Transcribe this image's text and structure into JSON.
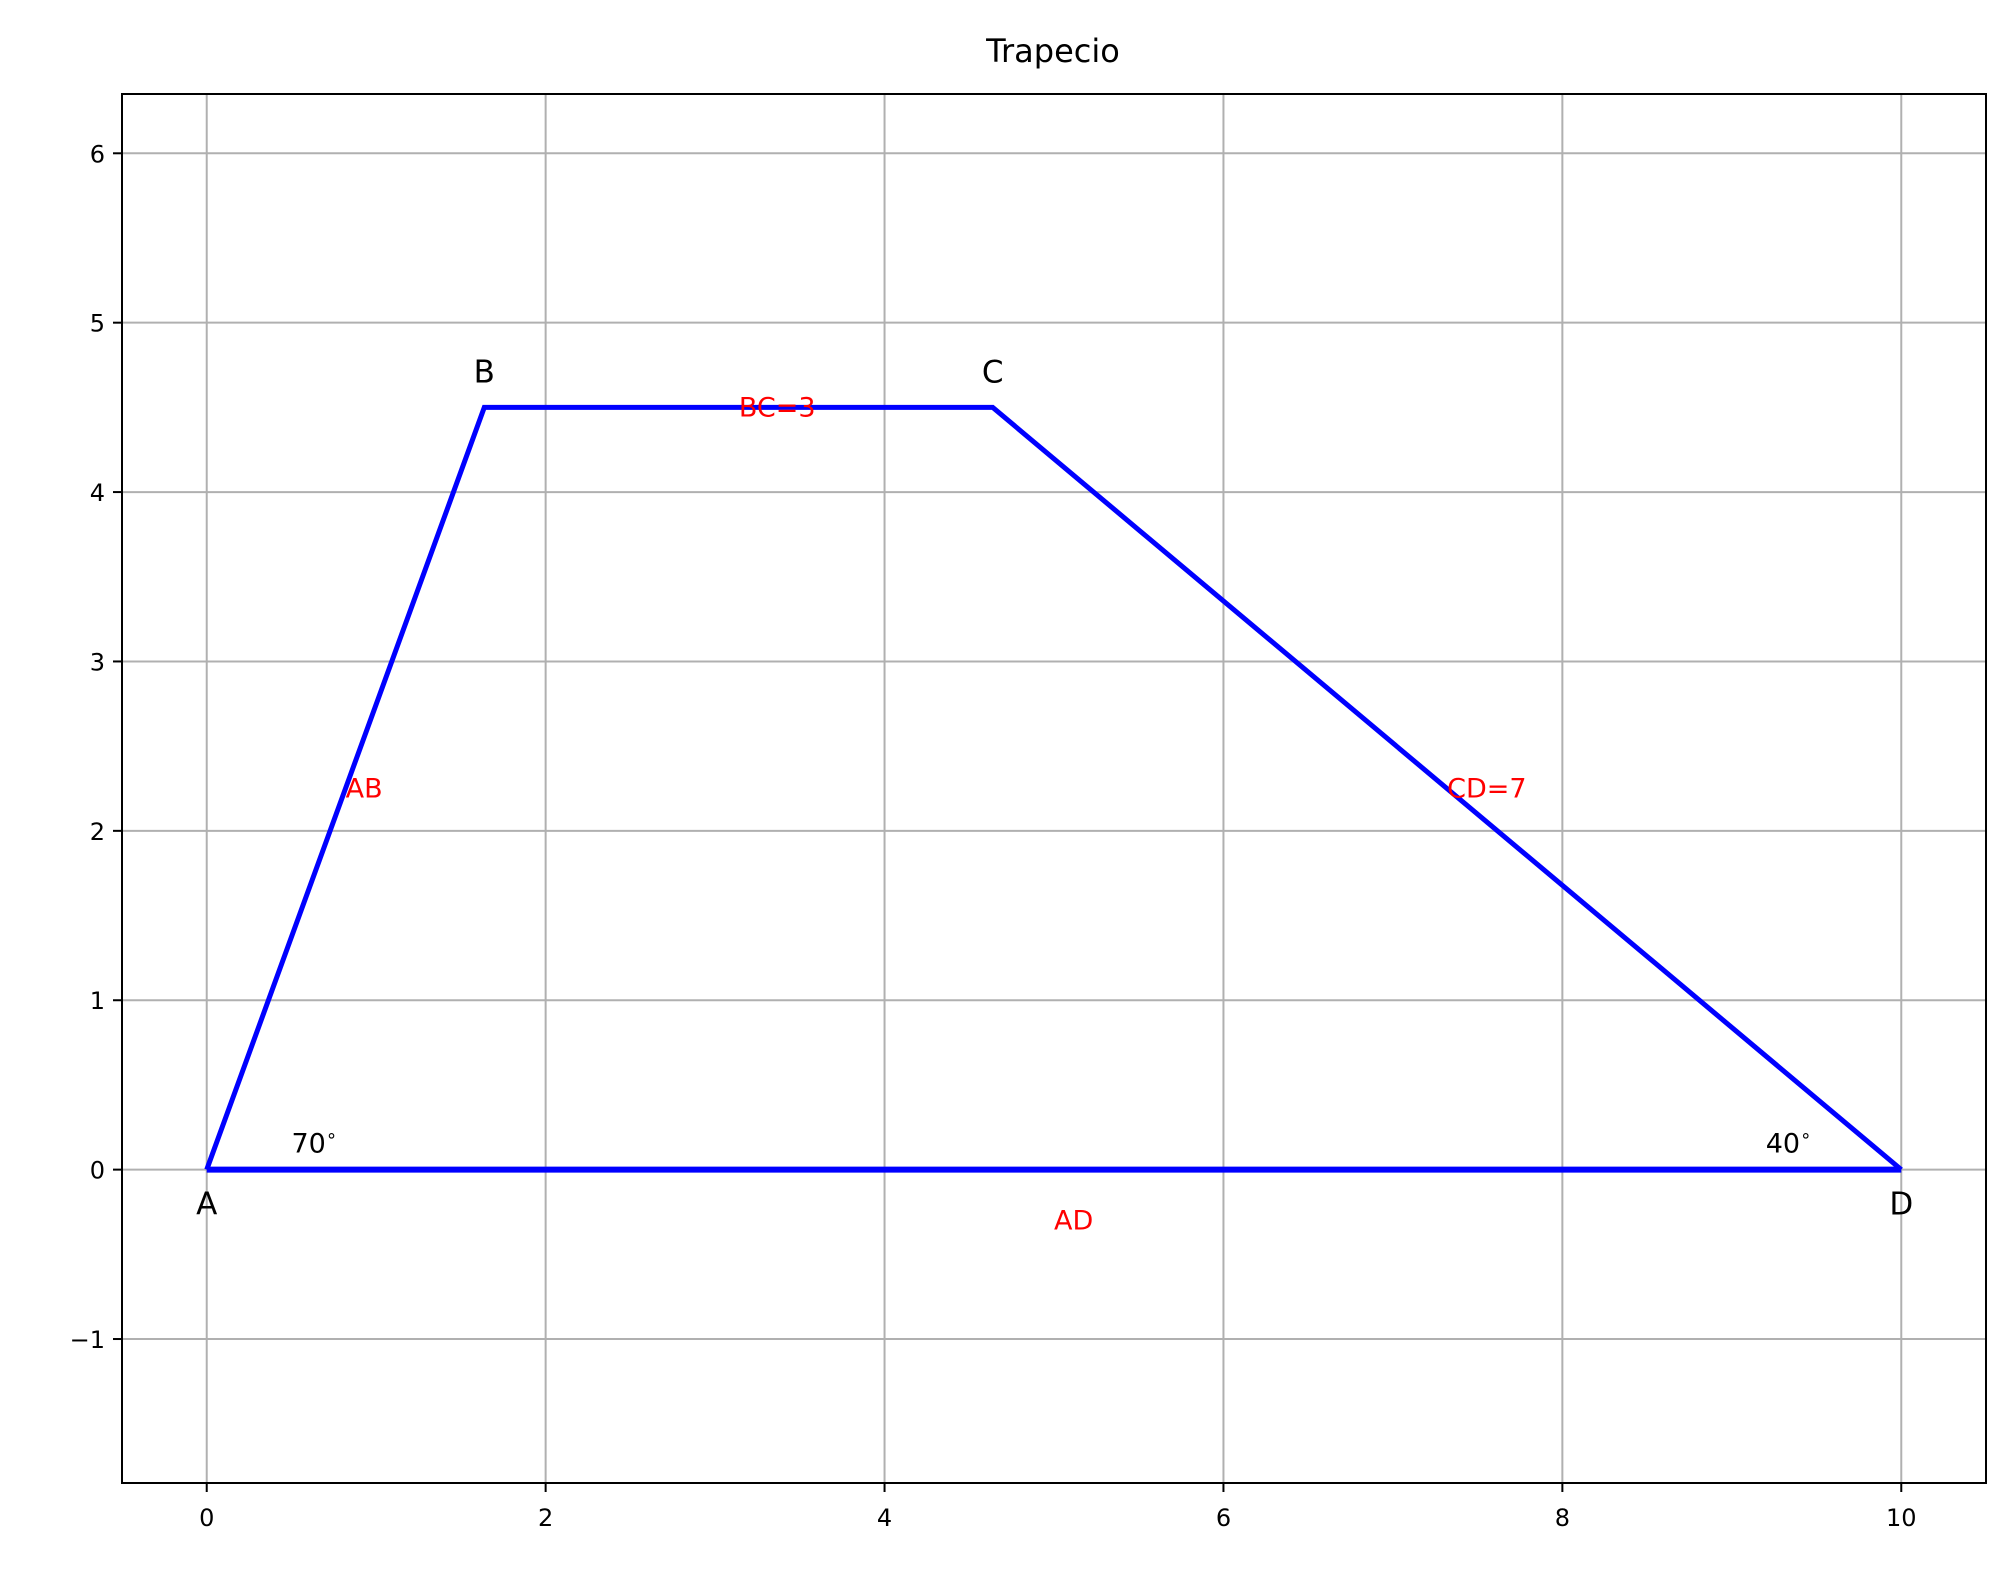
{
  "chart_data": {
    "type": "line",
    "title": "Trapecio",
    "xlim": [
      -0.5,
      10.5
    ],
    "ylim": [
      -1.85,
      6.35
    ],
    "x_ticks": [
      0,
      2,
      4,
      6,
      8,
      10
    ],
    "y_ticks": [
      -1,
      0,
      1,
      2,
      3,
      4,
      5,
      6
    ],
    "x_tick_labels": [
      "0",
      "2",
      "4",
      "6",
      "8",
      "10"
    ],
    "y_tick_labels": [
      "−1",
      "0",
      "1",
      "2",
      "3",
      "4",
      "5",
      "6"
    ],
    "grid": true,
    "shape_color": "#0000ff",
    "label_color": "#ff0000",
    "vertices": [
      {
        "name": "A",
        "x": 0.0,
        "y": 0.0
      },
      {
        "name": "B",
        "x": 1.638,
        "y": 4.5
      },
      {
        "name": "C",
        "x": 4.638,
        "y": 4.5
      },
      {
        "name": "D",
        "x": 10.0,
        "y": 0.0
      }
    ],
    "side_labels": [
      {
        "text": "AB",
        "x": 0.82,
        "y": 2.25
      },
      {
        "text": "BC=3",
        "x": 3.14,
        "y": 4.5
      },
      {
        "text": "CD=7",
        "x": 7.32,
        "y": 2.25
      },
      {
        "text": "AD",
        "x": 5.0,
        "y": -0.3
      }
    ],
    "angle_labels": [
      {
        "text": "70$^\\circ$",
        "display": "70",
        "x": 0.5,
        "y": 0.1
      },
      {
        "text": "40$^\\circ$",
        "display": "40",
        "x": 9.2,
        "y": 0.1
      }
    ]
  }
}
